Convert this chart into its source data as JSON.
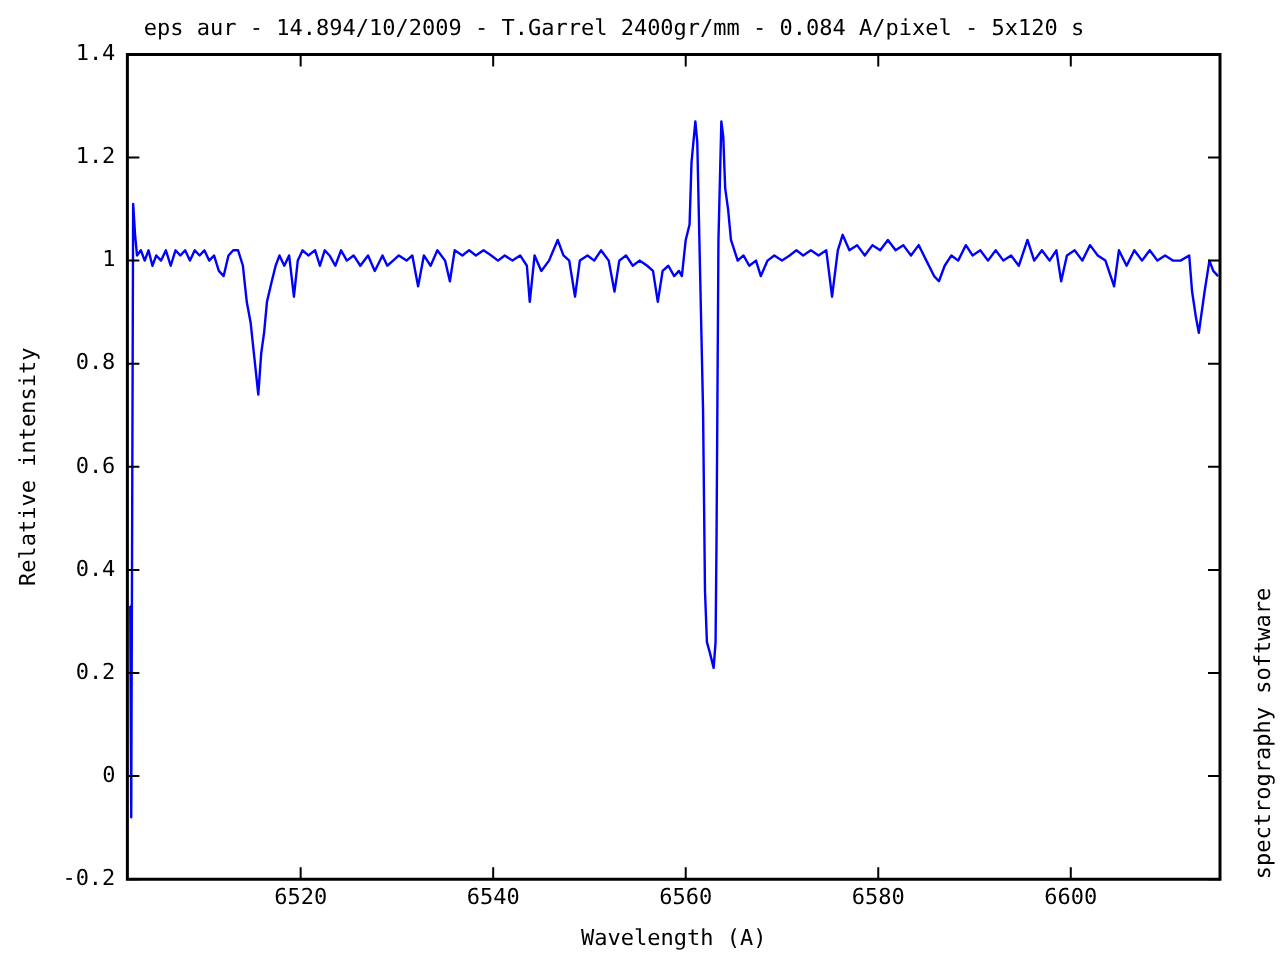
{
  "chart_data": {
    "type": "line",
    "title": "eps aur - 14.894/10/2009 - T.Garrel 2400gr/mm - 0.084 A/pixel - 5x120 s",
    "xlabel": "Wavelength (A)",
    "ylabel": "Relative intensity",
    "annotations": [
      "spectrography software"
    ],
    "x": [
      6502.3,
      6502.4,
      6502.6,
      6502.8,
      6503.0,
      6503.4,
      6503.8,
      6504.2,
      6504.6,
      6505.0,
      6505.5,
      6506.0,
      6506.5,
      6507.0,
      6507.5,
      6508.0,
      6508.5,
      6509.0,
      6509.5,
      6510.0,
      6510.5,
      6511.0,
      6511.5,
      6512.0,
      6512.5,
      6513.0,
      6513.5,
      6514.0,
      6514.4,
      6514.8,
      6515.2,
      6515.6,
      6515.9,
      6516.2,
      6516.5,
      6517.0,
      6517.4,
      6517.8,
      6518.3,
      6518.8,
      6519.3,
      6519.7,
      6520.2,
      6520.8,
      6521.5,
      6522.0,
      6522.5,
      6523.0,
      6523.6,
      6524.2,
      6524.8,
      6525.5,
      6526.2,
      6527.0,
      6527.7,
      6528.5,
      6529.0,
      6529.6,
      6530.2,
      6531.0,
      6531.6,
      6532.2,
      6532.8,
      6533.5,
      6534.2,
      6535.0,
      6535.5,
      6536.0,
      6536.8,
      6537.5,
      6538.2,
      6539.0,
      6539.8,
      6540.5,
      6541.2,
      6542.0,
      6542.8,
      6543.5,
      6543.8,
      6544.3,
      6545.0,
      6545.8,
      6546.7,
      6547.3,
      6547.9,
      6548.5,
      6549.0,
      6549.8,
      6550.5,
      6551.2,
      6552.0,
      6552.6,
      6553.1,
      6553.8,
      6554.5,
      6555.2,
      6556.0,
      6556.6,
      6557.1,
      6557.6,
      6558.2,
      6558.8,
      6559.3,
      6559.6,
      6560.0,
      6560.4,
      6560.6,
      6561.0,
      6561.2,
      6561.5,
      6561.8,
      6562.0,
      6562.2,
      6562.5,
      6562.9,
      6563.1,
      6563.2,
      6563.4,
      6563.7,
      6563.9,
      6564.1,
      6564.4,
      6564.7,
      6565.4,
      6566.0,
      6566.6,
      6567.3,
      6567.8,
      6568.5,
      6569.2,
      6570.0,
      6570.8,
      6571.5,
      6572.2,
      6573.0,
      6573.8,
      6574.6,
      6575.2,
      6575.8,
      6576.3,
      6577.0,
      6577.8,
      6578.6,
      6579.4,
      6580.2,
      6581.0,
      6581.8,
      6582.6,
      6583.4,
      6584.2,
      6585.0,
      6585.8,
      6586.3,
      6586.9,
      6587.6,
      6588.3,
      6589.1,
      6589.8,
      6590.6,
      6591.4,
      6592.2,
      6593.0,
      6593.8,
      6594.6,
      6595.5,
      6596.2,
      6597.0,
      6597.8,
      6598.5,
      6599.0,
      6599.6,
      6600.4,
      6601.2,
      6602.0,
      6602.8,
      6603.6,
      6604.5,
      6605.0,
      6605.8,
      6606.6,
      6607.4,
      6608.2,
      6609.0,
      6609.8,
      6610.6,
      6611.4,
      6612.3,
      6612.6,
      6613.0,
      6613.3,
      6613.6,
      6613.9,
      6614.4,
      6614.8,
      6615.3
    ],
    "series": [
      {
        "color": "#0000ff",
        "values": [
          0.33,
          -0.08,
          1.11,
          1.05,
          1.01,
          1.02,
          1.0,
          1.02,
          0.99,
          1.01,
          1.0,
          1.02,
          0.99,
          1.02,
          1.01,
          1.02,
          1.0,
          1.02,
          1.01,
          1.02,
          1.0,
          1.01,
          0.98,
          0.97,
          1.01,
          1.02,
          1.02,
          0.99,
          0.92,
          0.88,
          0.81,
          0.74,
          0.82,
          0.86,
          0.92,
          0.96,
          0.99,
          1.01,
          0.99,
          1.01,
          0.93,
          1.0,
          1.02,
          1.01,
          1.02,
          0.99,
          1.02,
          1.01,
          0.99,
          1.02,
          1.0,
          1.01,
          0.99,
          1.01,
          0.98,
          1.01,
          0.99,
          1.0,
          1.01,
          1.0,
          1.01,
          0.95,
          1.01,
          0.99,
          1.02,
          1.0,
          0.96,
          1.02,
          1.01,
          1.02,
          1.01,
          1.02,
          1.01,
          1.0,
          1.01,
          1.0,
          1.01,
          0.99,
          0.92,
          1.01,
          0.98,
          1.0,
          1.04,
          1.01,
          1.0,
          0.93,
          1.0,
          1.01,
          1.0,
          1.02,
          1.0,
          0.94,
          1.0,
          1.01,
          0.99,
          1.0,
          0.99,
          0.98,
          0.92,
          0.98,
          0.99,
          0.97,
          0.98,
          0.97,
          1.04,
          1.07,
          1.19,
          1.27,
          1.23,
          0.97,
          0.71,
          0.36,
          0.26,
          0.24,
          0.21,
          0.26,
          0.46,
          1.04,
          1.27,
          1.24,
          1.14,
          1.1,
          1.04,
          1.0,
          1.01,
          0.99,
          1.0,
          0.97,
          1.0,
          1.01,
          1.0,
          1.01,
          1.02,
          1.01,
          1.02,
          1.01,
          1.02,
          0.93,
          1.02,
          1.05,
          1.02,
          1.03,
          1.01,
          1.03,
          1.02,
          1.04,
          1.02,
          1.03,
          1.01,
          1.03,
          1.0,
          0.97,
          0.96,
          0.99,
          1.01,
          1.0,
          1.03,
          1.01,
          1.02,
          1.0,
          1.02,
          1.0,
          1.01,
          0.99,
          1.04,
          1.0,
          1.02,
          1.0,
          1.02,
          0.96,
          1.01,
          1.02,
          1.0,
          1.03,
          1.01,
          1.0,
          0.95,
          1.02,
          0.99,
          1.02,
          1.0,
          1.02,
          1.0,
          1.01,
          1.0,
          1.0,
          1.01,
          0.94,
          0.89,
          0.86,
          0.9,
          0.94,
          1.0,
          0.98,
          0.97
        ]
      }
    ],
    "xlim": [
      6502,
      6615.5
    ],
    "xticks": [
      6520,
      6540,
      6560,
      6580,
      6600
    ],
    "ylim": [
      -0.2,
      1.4
    ],
    "yticks": [
      -0.2,
      0,
      0.2,
      0.4,
      0.6,
      0.8,
      1,
      1.2,
      1.4
    ],
    "grid": false,
    "legend": false,
    "marker": "none",
    "line_style": "solid"
  }
}
